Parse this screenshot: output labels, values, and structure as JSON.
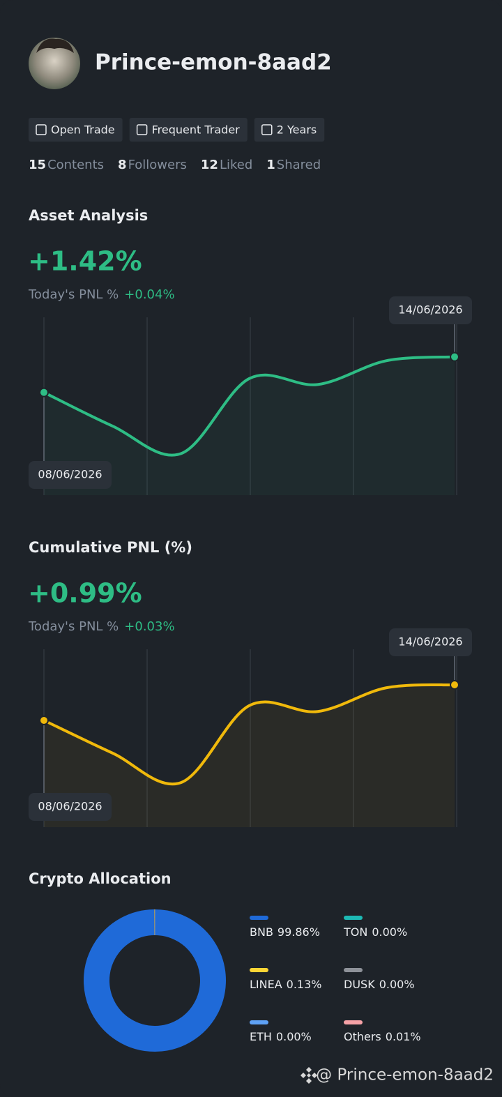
{
  "profile": {
    "name": "Prince-emon-8aad2",
    "tags": [
      "Open Trade",
      "Frequent Trader",
      "2 Years"
    ],
    "stats": [
      {
        "value": 15,
        "label": "Contents"
      },
      {
        "value": 8,
        "label": "Followers"
      },
      {
        "value": 12,
        "label": "Liked"
      },
      {
        "value": 1,
        "label": "Shared"
      }
    ]
  },
  "chart_data": [
    {
      "type": "line",
      "title": "Asset Analysis",
      "headline": "+1.42%",
      "pnl_label": "Today's PNL %",
      "pnl_value": "+0.04%",
      "x": [
        "08/06/2026",
        null,
        null,
        null,
        null,
        null,
        "14/06/2026"
      ],
      "values": [
        1.12,
        0.95,
        0.81,
        1.19,
        1.16,
        1.28,
        1.3
      ],
      "ylim": [
        0.6,
        1.5
      ],
      "color": "#2ebd85"
    },
    {
      "type": "line",
      "title": "Cumulative PNL (%)",
      "headline": "+0.99%",
      "pnl_label": "Today's PNL %",
      "pnl_value": "+0.03%",
      "x": [
        "08/06/2026",
        null,
        null,
        null,
        null,
        null,
        "14/06/2026"
      ],
      "values": [
        0.78,
        0.67,
        0.57,
        0.83,
        0.81,
        0.89,
        0.9
      ],
      "ylim": [
        0.42,
        1.02
      ],
      "color": "#f0b90b"
    },
    {
      "type": "pie",
      "title": "Crypto Allocation",
      "categories": [
        "BNB",
        "LINEA",
        "ETH",
        "TON",
        "DUSK",
        "Others"
      ],
      "values": [
        99.86,
        0.13,
        0,
        0,
        0,
        0.01
      ],
      "value_labels": [
        "99.86%",
        "0.13%",
        "0.00%",
        "0.00%",
        "0.00%",
        "0.01%"
      ],
      "colors": [
        "#1f6ad8",
        "#fcd535",
        "#5ea1f5",
        "#1db9b4",
        "#8e9299",
        "#f6a2a7"
      ]
    }
  ],
  "footer": "@ Prince-emon-8aad2"
}
